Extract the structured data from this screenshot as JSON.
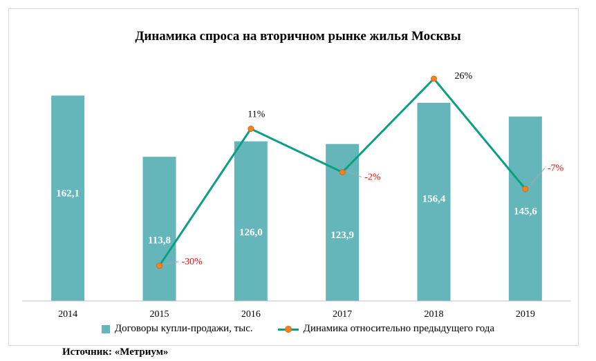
{
  "chart_data": {
    "type": "bar+line",
    "title": "Динамика спроса на вторичном рынке жилья Москвы",
    "categories": [
      "2014",
      "2015",
      "2016",
      "2017",
      "2018",
      "2019"
    ],
    "bar_series": {
      "name": "Договоры купли-продажи, тыс.",
      "values": [
        162.1,
        113.8,
        126.0,
        123.9,
        156.4,
        145.6
      ],
      "labels": [
        "162,1",
        "113,8",
        "126,0",
        "123,9",
        "156,4",
        "145,6"
      ],
      "color": "#64b6bb",
      "ylim": [
        0,
        170
      ]
    },
    "line_series": {
      "name": "Динамика относительно предыдущего года",
      "categories": [
        "2015",
        "2016",
        "2017",
        "2018",
        "2019"
      ],
      "values": [
        -30,
        11,
        -2,
        26,
        -7
      ],
      "labels": [
        "-30%",
        "11%",
        "-2%",
        "26%",
        "-7%"
      ],
      "color": "#0aa07f",
      "marker_color": "#f5821f",
      "positive_label_color": "#000000",
      "negative_label_color": "#ff0000",
      "ylim": [
        -37,
        28
      ]
    },
    "legend_position": "bottom",
    "grid": false
  },
  "source": "Источник: «Метриум»"
}
